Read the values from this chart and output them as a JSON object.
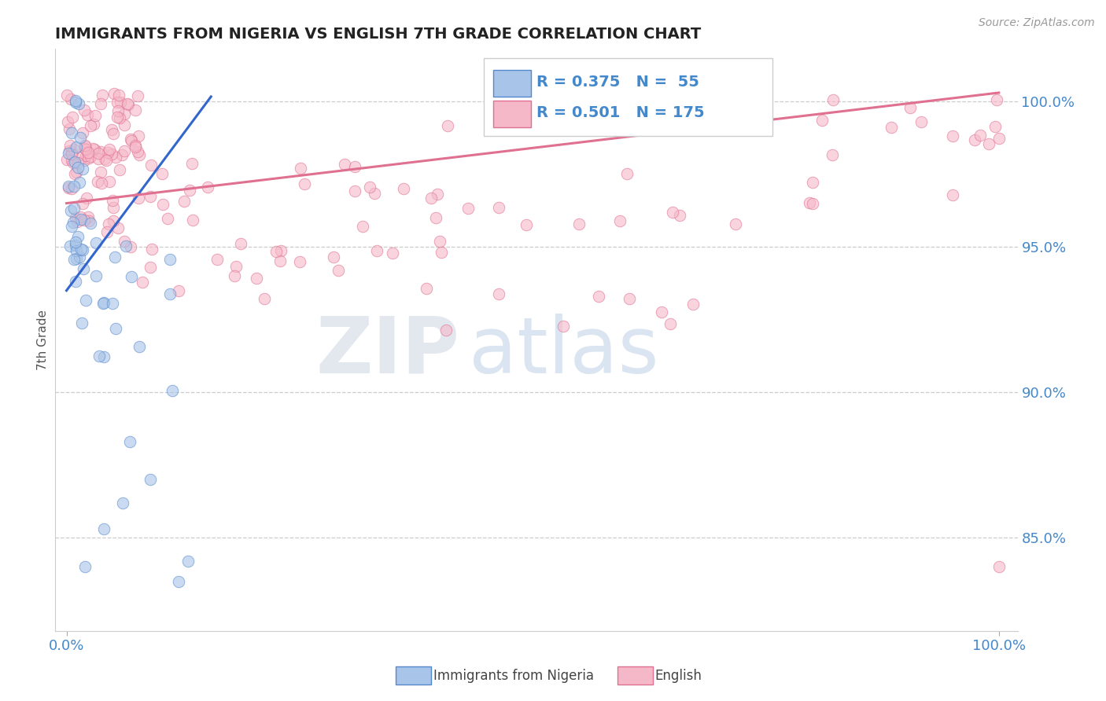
{
  "title": "IMMIGRANTS FROM NIGERIA VS ENGLISH 7TH GRADE CORRELATION CHART",
  "source_text": "Source: ZipAtlas.com",
  "ylabel": "7th Grade",
  "legend_label1": "Immigrants from Nigeria",
  "legend_label2": "English",
  "r1": 0.375,
  "n1": 55,
  "r2": 0.501,
  "n2": 175,
  "watermark_zip": "ZIP",
  "watermark_atlas": "atlas",
  "blue_fill": "#a8c4e8",
  "blue_edge": "#5588cc",
  "pink_fill": "#f5b8c8",
  "pink_edge": "#e07090",
  "blue_line": "#3366cc",
  "pink_line": "#e07090",
  "grid_color": "#cccccc",
  "ytick_color": "#4488cc",
  "xtick_color": "#4488cc",
  "title_color": "#222222",
  "ylabel_color": "#555555",
  "source_color": "#999999"
}
